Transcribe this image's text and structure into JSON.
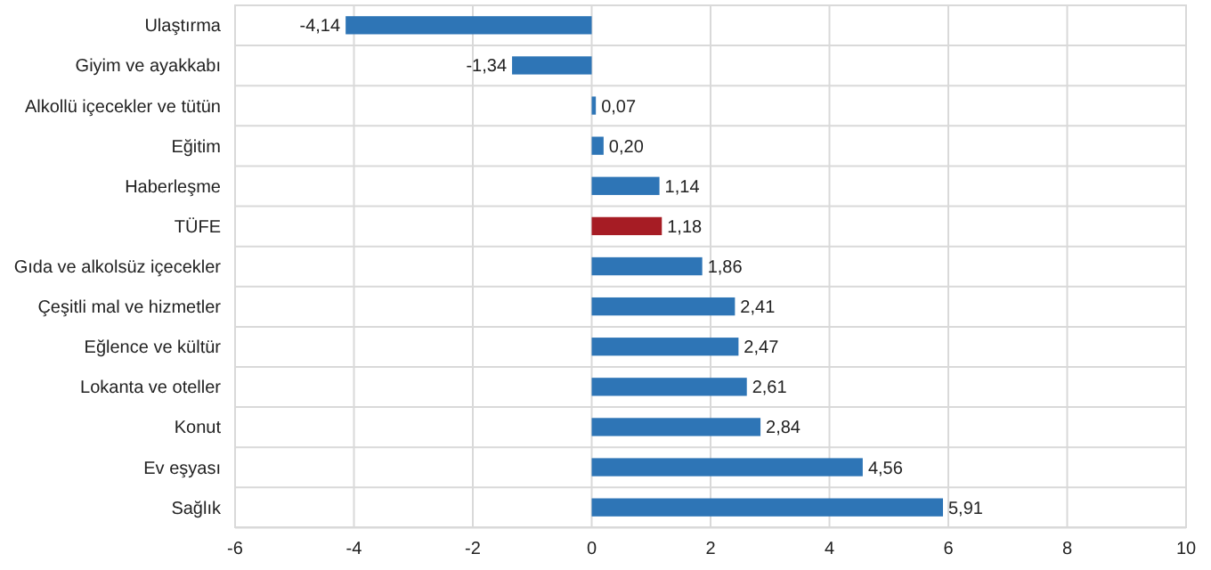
{
  "chart_data": {
    "type": "bar",
    "orientation": "horizontal",
    "categories": [
      "Ulaştırma",
      "Giyim ve ayakkabı",
      "Alkollü içecekler ve tütün",
      "Eğitim",
      "Haberleşme",
      "TÜFE",
      "Gıda ve alkolsüz içecekler",
      "Çeşitli mal ve hizmetler",
      "Eğlence ve kültür",
      "Lokanta ve oteller",
      "Konut",
      "Ev eşyası",
      "Sağlık"
    ],
    "values": [
      -4.14,
      -1.34,
      0.07,
      0.2,
      1.14,
      1.18,
      1.86,
      2.41,
      2.47,
      2.61,
      2.84,
      4.56,
      5.91
    ],
    "colors": [
      "#2e75b6",
      "#2e75b6",
      "#2e75b6",
      "#2e75b6",
      "#2e75b6",
      "#a61c24",
      "#2e75b6",
      "#2e75b6",
      "#2e75b6",
      "#2e75b6",
      "#2e75b6",
      "#2e75b6",
      "#2e75b6"
    ],
    "value_labels": [
      "-4,14",
      "-1,34",
      "0,07",
      "0,20",
      "1,14",
      "1,18",
      "1,86",
      "2,41",
      "2,47",
      "2,61",
      "2,84",
      "4,56",
      "5,91"
    ],
    "xlim": [
      -6,
      10
    ],
    "xticks": [
      -6,
      -4,
      -2,
      0,
      2,
      4,
      6,
      8,
      10
    ],
    "grid": true
  }
}
